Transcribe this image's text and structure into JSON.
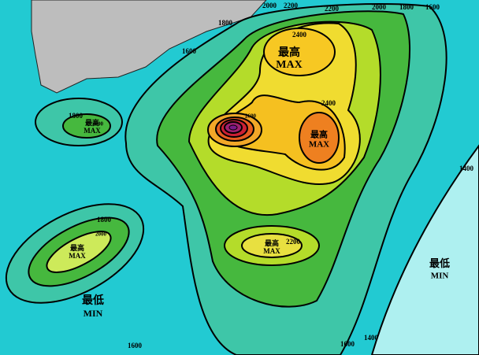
{
  "contour_labels": [
    2000,
    2200,
    2200,
    2000,
    1800,
    1600,
    1800,
    1600,
    2400,
    2400,
    2600,
    1800,
    2000,
    1400,
    1800,
    2000,
    2200,
    1600,
    1600,
    1400
  ],
  "max_labels": [
    {
      "zh": "最高",
      "en": "MAX"
    },
    {
      "zh": "最高",
      "en": "MAX"
    },
    {
      "zh": "最高",
      "en": "MAX"
    },
    {
      "zh": "最高",
      "en": "MAX"
    },
    {
      "zh": "最高",
      "en": "MAX"
    }
  ],
  "min_labels": [
    {
      "zh": "最低",
      "en": "MIN"
    },
    {
      "zh": "最低",
      "en": "MIN"
    }
  ]
}
